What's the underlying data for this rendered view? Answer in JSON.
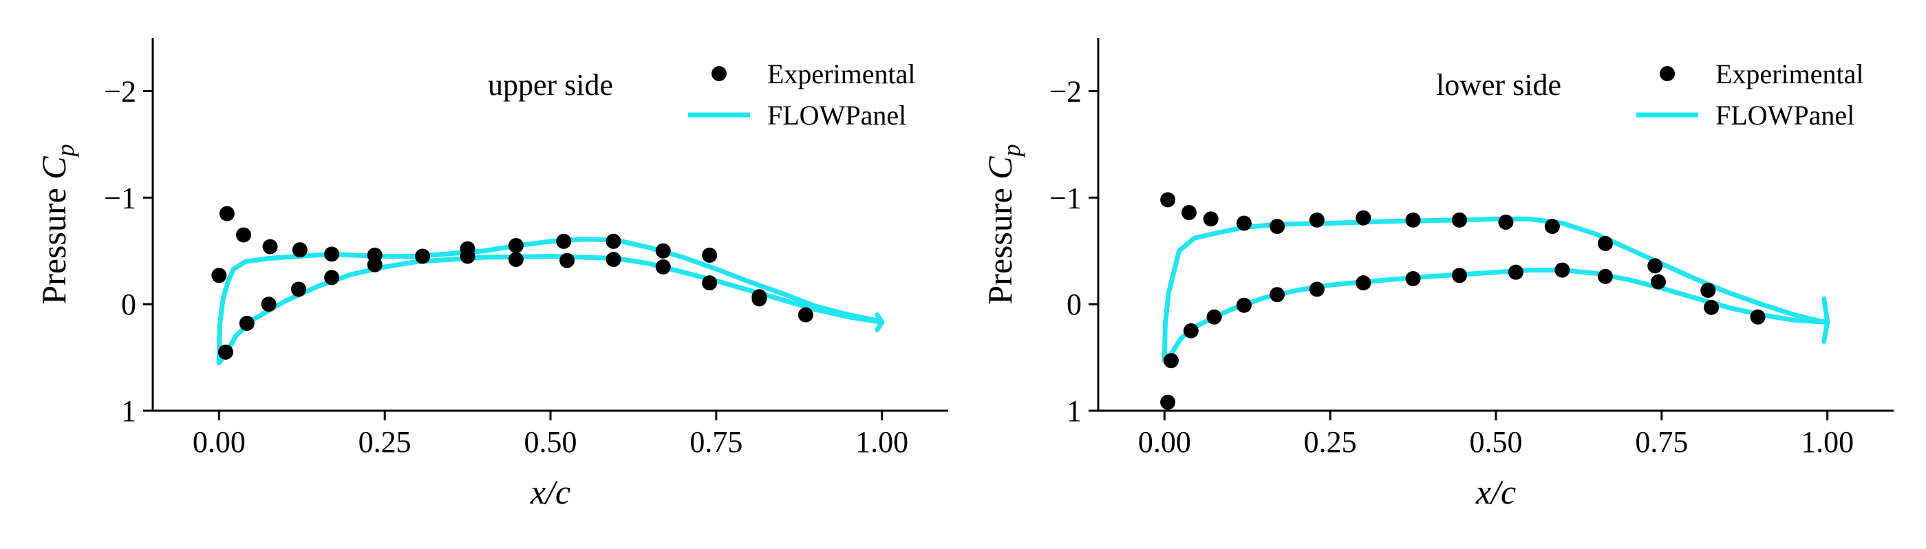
{
  "colors": {
    "model_line": "#22e5f2",
    "experimental_marker": "#000000",
    "axes": "#000000",
    "background": "#ffffff"
  },
  "chart_data": [
    {
      "type": "line",
      "title": "upper side",
      "xlabel": "x/c",
      "ylabel_text": "Pressure ",
      "ylabel_symbol": "C",
      "ylabel_subscript": "p",
      "xlim": [
        -0.1,
        1.1
      ],
      "ylim": [
        1,
        -2.5
      ],
      "y_inverted": true,
      "grid": false,
      "legend_placement": "top-right",
      "xticks": [
        0.0,
        0.25,
        0.5,
        0.75,
        1.0
      ],
      "xtick_labels": [
        "0.00",
        "0.25",
        "0.50",
        "0.75",
        "1.00"
      ],
      "yticks": [
        -2,
        -1,
        0,
        1
      ],
      "ytick_labels": [
        "−2",
        "−1",
        "0",
        "1"
      ],
      "series": [
        {
          "name": "Experimental",
          "kind": "scatter",
          "points": [
            [
              0.0,
              -0.27
            ],
            [
              0.012,
              -0.85
            ],
            [
              0.037,
              -0.65
            ],
            [
              0.077,
              -0.54
            ],
            [
              0.122,
              -0.51
            ],
            [
              0.17,
              -0.47
            ],
            [
              0.235,
              -0.46
            ],
            [
              0.307,
              -0.45
            ],
            [
              0.375,
              -0.52
            ],
            [
              0.448,
              -0.55
            ],
            [
              0.52,
              -0.59
            ],
            [
              0.595,
              -0.59
            ],
            [
              0.67,
              -0.5
            ],
            [
              0.74,
              -0.46
            ],
            [
              0.815,
              -0.07
            ],
            [
              0.885,
              0.1
            ],
            [
              0.01,
              0.45
            ],
            [
              0.042,
              0.18
            ],
            [
              0.075,
              0.0
            ],
            [
              0.12,
              -0.14
            ],
            [
              0.17,
              -0.25
            ],
            [
              0.235,
              -0.37
            ],
            [
              0.375,
              -0.45
            ],
            [
              0.448,
              -0.42
            ],
            [
              0.525,
              -0.41
            ],
            [
              0.595,
              -0.42
            ],
            [
              0.67,
              -0.35
            ],
            [
              0.74,
              -0.2
            ],
            [
              0.815,
              -0.05
            ]
          ]
        },
        {
          "name": "FLOWPanel",
          "kind": "line",
          "upper": [
            [
              0.0,
              0.55
            ],
            [
              0.001,
              0.2
            ],
            [
              0.006,
              -0.05
            ],
            [
              0.014,
              -0.22
            ],
            [
              0.022,
              -0.33
            ],
            [
              0.04,
              -0.4
            ],
            [
              0.075,
              -0.43
            ],
            [
              0.12,
              -0.45
            ],
            [
              0.17,
              -0.47
            ],
            [
              0.235,
              -0.45
            ],
            [
              0.3,
              -0.45
            ],
            [
              0.4,
              -0.5
            ],
            [
              0.45,
              -0.55
            ],
            [
              0.5,
              -0.59
            ],
            [
              0.55,
              -0.61
            ],
            [
              0.6,
              -0.6
            ],
            [
              0.65,
              -0.53
            ],
            [
              0.7,
              -0.44
            ],
            [
              0.75,
              -0.33
            ],
            [
              0.8,
              -0.21
            ],
            [
              0.85,
              -0.1
            ],
            [
              0.9,
              0.02
            ],
            [
              0.95,
              0.1
            ],
            [
              0.99,
              0.15
            ],
            [
              1.0,
              0.17
            ]
          ],
          "lower": [
            [
              0.0,
              0.55
            ],
            [
              0.01,
              0.47
            ],
            [
              0.025,
              0.3
            ],
            [
              0.05,
              0.15
            ],
            [
              0.1,
              -0.03
            ],
            [
              0.15,
              -0.17
            ],
            [
              0.2,
              -0.28
            ],
            [
              0.25,
              -0.35
            ],
            [
              0.3,
              -0.4
            ],
            [
              0.4,
              -0.44
            ],
            [
              0.5,
              -0.45
            ],
            [
              0.6,
              -0.43
            ],
            [
              0.65,
              -0.38
            ],
            [
              0.7,
              -0.3
            ],
            [
              0.75,
              -0.22
            ],
            [
              0.8,
              -0.13
            ],
            [
              0.85,
              -0.04
            ],
            [
              0.9,
              0.05
            ],
            [
              0.95,
              0.12
            ],
            [
              1.0,
              0.17
            ]
          ],
          "trailing_edge": [
            [
              0.993,
              0.1
            ],
            [
              1.0,
              0.17
            ],
            [
              0.993,
              0.24
            ]
          ]
        }
      ]
    },
    {
      "type": "line",
      "title": "lower side",
      "xlabel": "x/c",
      "ylabel_text": "Pressure ",
      "ylabel_symbol": "C",
      "ylabel_subscript": "p",
      "xlim": [
        -0.1,
        1.1
      ],
      "ylim": [
        1,
        -2.5
      ],
      "y_inverted": true,
      "grid": false,
      "legend_placement": "top-right",
      "xticks": [
        0.0,
        0.25,
        0.5,
        0.75,
        1.0
      ],
      "xtick_labels": [
        "0.00",
        "0.25",
        "0.50",
        "0.75",
        "1.00"
      ],
      "yticks": [
        -2,
        -1,
        0,
        1
      ],
      "ytick_labels": [
        "−2",
        "−1",
        "0",
        "1"
      ],
      "series": [
        {
          "name": "Experimental",
          "kind": "scatter",
          "points": [
            [
              0.005,
              -0.98
            ],
            [
              0.037,
              -0.86
            ],
            [
              0.07,
              -0.8
            ],
            [
              0.12,
              -0.76
            ],
            [
              0.17,
              -0.73
            ],
            [
              0.23,
              -0.79
            ],
            [
              0.3,
              -0.81
            ],
            [
              0.375,
              -0.79
            ],
            [
              0.445,
              -0.79
            ],
            [
              0.515,
              -0.77
            ],
            [
              0.585,
              -0.73
            ],
            [
              0.665,
              -0.57
            ],
            [
              0.74,
              -0.36
            ],
            [
              0.82,
              -0.13
            ],
            [
              0.005,
              0.92
            ],
            [
              0.01,
              0.53
            ],
            [
              0.04,
              0.25
            ],
            [
              0.075,
              0.12
            ],
            [
              0.12,
              0.01
            ],
            [
              0.17,
              -0.09
            ],
            [
              0.23,
              -0.14
            ],
            [
              0.3,
              -0.2
            ],
            [
              0.375,
              -0.24
            ],
            [
              0.445,
              -0.27
            ],
            [
              0.53,
              -0.3
            ],
            [
              0.6,
              -0.32
            ],
            [
              0.665,
              -0.26
            ],
            [
              0.745,
              -0.21
            ],
            [
              0.825,
              0.03
            ],
            [
              0.895,
              0.12
            ]
          ]
        },
        {
          "name": "FLOWPanel",
          "kind": "line",
          "upper": [
            [
              0.0,
              0.53
            ],
            [
              0.001,
              0.2
            ],
            [
              0.006,
              -0.1
            ],
            [
              0.014,
              -0.3
            ],
            [
              0.022,
              -0.5
            ],
            [
              0.045,
              -0.62
            ],
            [
              0.08,
              -0.67
            ],
            [
              0.12,
              -0.72
            ],
            [
              0.17,
              -0.75
            ],
            [
              0.25,
              -0.76
            ],
            [
              0.35,
              -0.78
            ],
            [
              0.45,
              -0.79
            ],
            [
              0.5,
              -0.8
            ],
            [
              0.55,
              -0.8
            ],
            [
              0.6,
              -0.76
            ],
            [
              0.65,
              -0.66
            ],
            [
              0.7,
              -0.52
            ],
            [
              0.75,
              -0.38
            ],
            [
              0.8,
              -0.24
            ],
            [
              0.85,
              -0.11
            ],
            [
              0.9,
              0.0
            ],
            [
              0.95,
              0.1
            ],
            [
              0.99,
              0.16
            ],
            [
              1.0,
              0.17
            ]
          ],
          "lower": [
            [
              0.0,
              0.53
            ],
            [
              0.01,
              0.47
            ],
            [
              0.025,
              0.32
            ],
            [
              0.05,
              0.2
            ],
            [
              0.1,
              0.05
            ],
            [
              0.15,
              -0.06
            ],
            [
              0.2,
              -0.13
            ],
            [
              0.25,
              -0.18
            ],
            [
              0.3,
              -0.21
            ],
            [
              0.4,
              -0.26
            ],
            [
              0.5,
              -0.3
            ],
            [
              0.55,
              -0.32
            ],
            [
              0.6,
              -0.32
            ],
            [
              0.65,
              -0.29
            ],
            [
              0.7,
              -0.23
            ],
            [
              0.75,
              -0.15
            ],
            [
              0.8,
              -0.06
            ],
            [
              0.85,
              0.03
            ],
            [
              0.9,
              0.1
            ],
            [
              0.95,
              0.15
            ],
            [
              1.0,
              0.17
            ]
          ],
          "trailing_edge": [
            [
              0.995,
              -0.05
            ],
            [
              1.0,
              0.17
            ],
            [
              0.995,
              0.35
            ]
          ]
        }
      ]
    }
  ]
}
